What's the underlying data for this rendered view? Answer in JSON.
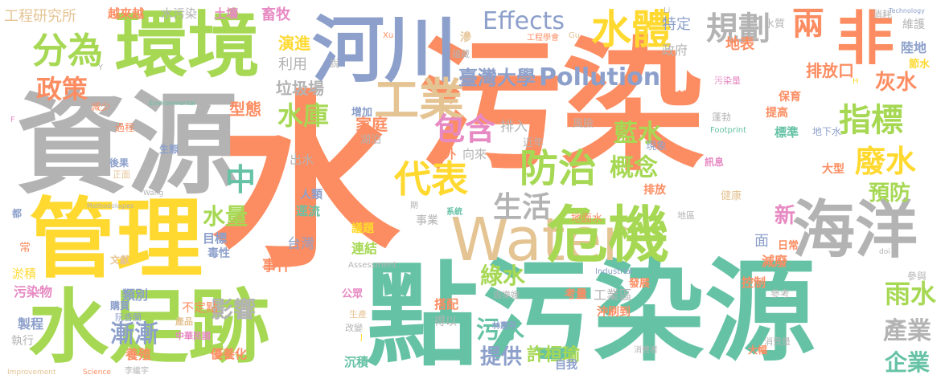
{
  "words": [
    {
      "text": "水",
      "color": "#fc8d62"
    },
    {
      "text": "污染",
      "color": "#fc8d62"
    },
    {
      "text": "資源",
      "color": "#b3b3b3"
    },
    {
      "text": "環境",
      "color": "#a6d854"
    },
    {
      "text": "點",
      "color": "#66c2a5"
    },
    {
      "text": "污染源",
      "color": "#66c2a5"
    },
    {
      "text": "管理",
      "color": "#ffd92f"
    },
    {
      "text": "水足跡",
      "color": "#a6d854"
    },
    {
      "text": "河川",
      "color": "#8da0cb"
    },
    {
      "text": "Water",
      "color": "#e5c494"
    },
    {
      "text": "危機",
      "color": "#a6d854"
    },
    {
      "text": "海洋",
      "color": "#b3b3b3"
    },
    {
      "text": "非",
      "color": "#fc8d62"
    },
    {
      "text": "工業",
      "color": "#e5c494"
    },
    {
      "text": "水體",
      "color": "#ffd92f"
    },
    {
      "text": "分為",
      "color": "#a6d854"
    },
    {
      "text": "Effects",
      "color": "#8da0cb"
    },
    {
      "text": "規劃",
      "color": "#b3b3b3"
    },
    {
      "text": "兩",
      "color": "#fc8d62"
    },
    {
      "text": "防治",
      "color": "#a6d854"
    },
    {
      "text": "代表",
      "color": "#ffd92f"
    },
    {
      "text": "Pollution",
      "color": "#8da0cb"
    },
    {
      "text": "包含",
      "color": "#e78ac3"
    },
    {
      "text": "指標",
      "color": "#a6d854"
    },
    {
      "text": "廢水",
      "color": "#ffd92f"
    },
    {
      "text": "政策",
      "color": "#fc8d62"
    },
    {
      "text": "水庫",
      "color": "#a6d854"
    },
    {
      "text": "中",
      "color": "#66c2a5"
    },
    {
      "text": "概念",
      "color": "#a6d854"
    },
    {
      "text": "藍水",
      "color": "#a6d854"
    },
    {
      "text": "生活",
      "color": "#b3b3b3"
    },
    {
      "text": "漸漸",
      "color": "#8da0cb"
    },
    {
      "text": "污水",
      "color": "#66c2a5"
    },
    {
      "text": "綠水",
      "color": "#a6d854"
    },
    {
      "text": "雨水",
      "color": "#a6d854"
    },
    {
      "text": "產業",
      "color": "#b3b3b3"
    },
    {
      "text": "企業",
      "color": "#66c2a5"
    },
    {
      "text": "影響",
      "color": "#b3b3b3"
    },
    {
      "text": "水量",
      "color": "#a6d854"
    },
    {
      "text": "灰水",
      "color": "#fc8d62"
    },
    {
      "text": "預防",
      "color": "#a6d854"
    },
    {
      "text": "提供",
      "color": "#8da0cb"
    },
    {
      "text": "新",
      "color": "#e78ac3"
    },
    {
      "text": "許桓瑜",
      "color": "#a6d854"
    },
    {
      "text": "排放口",
      "color": "#fc8d62"
    },
    {
      "text": "臺灣大學",
      "color": "#8da0cb"
    },
    {
      "text": "工程研究所",
      "color": "#e5c494"
    },
    {
      "text": "越來越",
      "color": "#fc8d62"
    },
    {
      "text": "水污染",
      "color": "#b3b3b3"
    },
    {
      "text": "土壤",
      "color": "#e78ac3"
    },
    {
      "text": "畜牧",
      "color": "#e78ac3"
    },
    {
      "text": "演進",
      "color": "#ffd92f"
    },
    {
      "text": "利用",
      "color": "#b3b3b3"
    },
    {
      "text": "垃圾場",
      "color": "#b3b3b3"
    },
    {
      "text": "型態",
      "color": "#fc8d62"
    },
    {
      "text": "家庭",
      "color": "#fc8d62"
    },
    {
      "text": "特定",
      "color": "#8da0cb"
    },
    {
      "text": "政府",
      "color": "#b3b3b3"
    },
    {
      "text": "地表",
      "color": "#fc8d62"
    },
    {
      "text": "水質",
      "color": "#b3b3b3"
    },
    {
      "text": "維護",
      "color": "#b3b3b3"
    },
    {
      "text": "陸地",
      "color": "#8da0cb"
    },
    {
      "text": "節水",
      "color": "#ffd92f"
    },
    {
      "text": "保育",
      "color": "#fc8d62"
    },
    {
      "text": "消耗",
      "color": "#b3b3b3"
    },
    {
      "text": "Technology",
      "color": "#8da0cb"
    },
    {
      "text": "改善",
      "color": "#fc8d62"
    },
    {
      "text": "提高",
      "color": "#fc8d62"
    },
    {
      "text": "標準",
      "color": "#66c2a5"
    },
    {
      "text": "地下水",
      "color": "#8da0cb"
    },
    {
      "text": "污染量",
      "color": "#e78ac3"
    },
    {
      "text": "風險",
      "color": "#b3b3b3"
    },
    {
      "text": "蓬勃",
      "color": "#b3b3b3"
    },
    {
      "text": "Footprint",
      "color": "#66c2a5"
    },
    {
      "text": "現象",
      "color": "#8da0cb"
    },
    {
      "text": "訊息",
      "color": "#e78ac3"
    },
    {
      "text": "大型",
      "color": "#fc8d62"
    },
    {
      "text": "排入",
      "color": "#b3b3b3"
    },
    {
      "text": "意外",
      "color": "#fc8d62"
    },
    {
      "text": "向來",
      "color": "#b3b3b3"
    },
    {
      "text": "近年",
      "color": "#b3b3b3"
    },
    {
      "text": "健康",
      "color": "#e5c494"
    },
    {
      "text": "排放",
      "color": "#fc8d62"
    },
    {
      "text": "出水",
      "color": "#b3b3b3"
    },
    {
      "text": "生態",
      "color": "#8da0cb"
    },
    {
      "text": "湖泊",
      "color": "#b3b3b3"
    },
    {
      "text": "增加",
      "color": "#8da0cb"
    },
    {
      "text": "人類",
      "color": "#8da0cb"
    },
    {
      "text": "逕流",
      "color": "#66c2a5"
    },
    {
      "text": "議題",
      "color": "#ffd92f"
    },
    {
      "text": "事業",
      "color": "#b3b3b3"
    },
    {
      "text": "系統",
      "color": "#66c2a5"
    },
    {
      "text": "地面水",
      "color": "#fc8d62"
    },
    {
      "text": "地區",
      "color": "#b3b3b3"
    },
    {
      "text": "目標",
      "color": "#8da0cb"
    },
    {
      "text": "毒性",
      "color": "#8da0cb"
    },
    {
      "text": "台灣",
      "color": "#8da0cb"
    },
    {
      "text": "連結",
      "color": "#a6d854"
    },
    {
      "text": "事件",
      "color": "#fc8d62"
    },
    {
      "text": "面",
      "color": "#8da0cb"
    },
    {
      "text": "日常",
      "color": "#fc8d62"
    },
    {
      "text": "減廢",
      "color": "#fc8d62"
    },
    {
      "text": "類別",
      "color": "#8da0cb"
    },
    {
      "text": "不定點",
      "color": "#fc8d62"
    },
    {
      "text": "養殖",
      "color": "#fc8d62"
    },
    {
      "text": "搭配",
      "color": "#fc8d62"
    },
    {
      "text": "考量",
      "color": "#fc8d62"
    },
    {
      "text": "工業區",
      "color": "#b3b3b3"
    },
    {
      "text": "發展",
      "color": "#fc8d62"
    },
    {
      "text": "控制",
      "color": "#fc8d62"
    },
    {
      "text": "參與",
      "color": "#b3b3b3"
    },
    {
      "text": "參考",
      "color": "#b3b3b3"
    },
    {
      "text": "沖刷到",
      "color": "#fc8d62"
    },
    {
      "text": "自我",
      "color": "#8da0cb"
    },
    {
      "text": "優養化",
      "color": "#fc8d62"
    },
    {
      "text": "沉積",
      "color": "#66c2a5"
    },
    {
      "text": "公眾",
      "color": "#e78ac3"
    },
    {
      "text": "生產",
      "color": "#e5c494"
    },
    {
      "text": "改變",
      "color": "#b3b3b3"
    },
    {
      "text": "得以",
      "color": "#b3b3b3"
    },
    {
      "text": "周樂娥",
      "color": "#b3b3b3"
    },
    {
      "text": "林惠芬",
      "color": "#8da0cb"
    },
    {
      "text": "消費量",
      "color": "#b3b3b3"
    },
    {
      "text": "消費者",
      "color": "#b3b3b3"
    },
    {
      "text": "大幅",
      "color": "#fc8d62"
    },
    {
      "text": "中華民國",
      "color": "#e78ac3"
    },
    {
      "text": "污染物",
      "color": "#e78ac3"
    },
    {
      "text": "淤積",
      "color": "#ffd92f"
    },
    {
      "text": "製程",
      "color": "#8da0cb"
    },
    {
      "text": "執行",
      "color": "#b3b3b3"
    },
    {
      "text": "購買",
      "color": "#8da0cb"
    },
    {
      "text": "阮香蘭",
      "color": "#8da0cb"
    },
    {
      "text": "產品",
      "color": "#e5c494"
    },
    {
      "text": "文獻",
      "color": "#e5c494"
    },
    {
      "text": "常",
      "color": "#fc8d62"
    },
    {
      "text": "都",
      "color": "#8da0cb"
    },
    {
      "text": "後果",
      "color": "#8da0cb"
    },
    {
      "text": "正面",
      "color": "#e5c494"
    },
    {
      "text": "過程",
      "color": "#fc8d62"
    },
    {
      "text": "減少",
      "color": "#fc8d62"
    },
    {
      "text": "說",
      "color": "#b3b3b3"
    },
    {
      "text": "滲",
      "color": "#e5c494"
    },
    {
      "text": "蘊藏",
      "color": "#b3b3b3"
    },
    {
      "text": "工程學會",
      "color": "#fc8d62"
    },
    {
      "text": "李繼宇",
      "color": "#b3b3b3"
    },
    {
      "text": "Improvement",
      "color": "#e5c494"
    },
    {
      "text": "Science",
      "color": "#fc8d62"
    },
    {
      "text": "Assessment",
      "color": "#b3b3b3"
    },
    {
      "text": "Methodologies",
      "color": "#b3b3b3"
    },
    {
      "text": "Industrial",
      "color": "#8da0cb"
    },
    {
      "text": "Environmental",
      "color": "#66c2a5"
    },
    {
      "text": "Wang",
      "color": "#b3b3b3"
    },
    {
      "text": "Xu",
      "color": "#fc8d62"
    },
    {
      "text": "Gu",
      "color": "#e5c494"
    },
    {
      "text": "Li",
      "color": "#b3b3b3"
    },
    {
      "text": "doi",
      "color": "#b3b3b3"
    },
    {
      "text": "H",
      "color": "#ffd92f"
    },
    {
      "text": "Y",
      "color": "#b3b3b3"
    },
    {
      "text": "F",
      "color": "#e78ac3"
    },
    {
      "text": "期",
      "color": "#b3b3b3"
    },
    {
      "text": "J",
      "color": "#ffd92f"
    }
  ]
}
